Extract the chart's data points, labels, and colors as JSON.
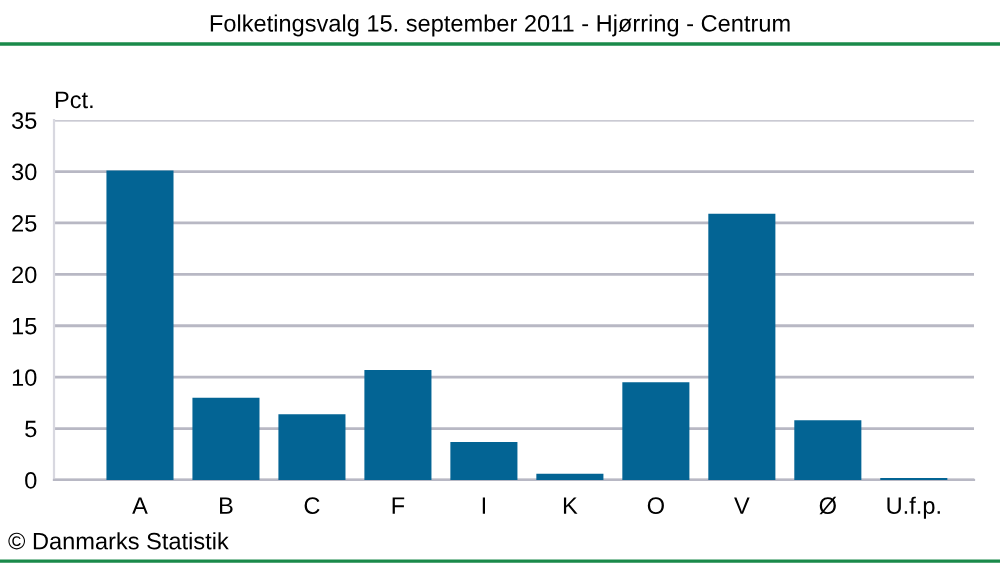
{
  "chart_data": {
    "type": "bar",
    "title": "Folketingsvalg 15. september 2011 - Hjørring - Centrum",
    "ylabel": "Pct.",
    "categories": [
      "A",
      "B",
      "C",
      "F",
      "I",
      "K",
      "O",
      "V",
      "Ø",
      "U.f.p."
    ],
    "values": [
      30.1,
      8.0,
      6.4,
      10.7,
      3.7,
      0.6,
      9.5,
      25.9,
      5.8,
      0.2
    ],
    "color": "#036494",
    "ylim": [
      0,
      35
    ],
    "yticks": [
      0,
      5,
      10,
      15,
      20,
      25,
      30,
      35
    ],
    "grid": "y",
    "annotations": [
      "© Danmarks Statistik"
    ]
  }
}
